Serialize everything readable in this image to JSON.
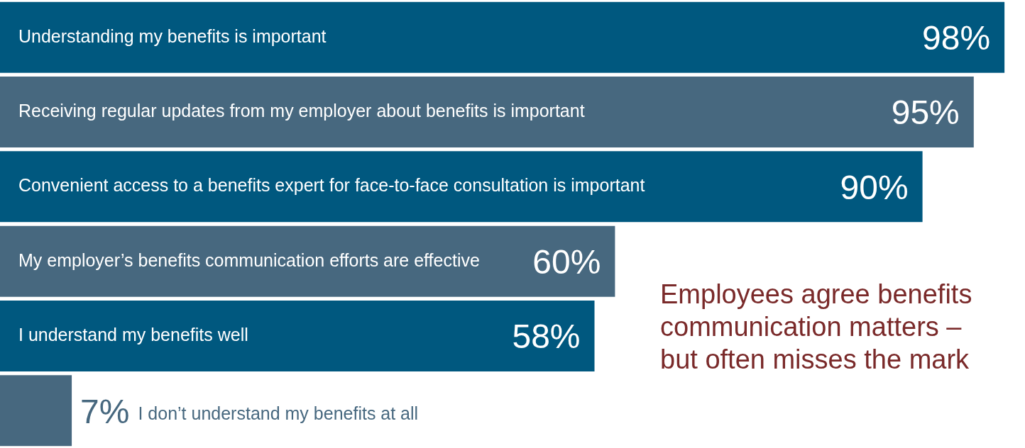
{
  "chart_data": {
    "type": "bar",
    "orientation": "horizontal",
    "title": "Employees agree benefits communication matters – but often misses the mark",
    "categories": [
      "Understanding my benefits is important",
      "Receiving regular updates from my employer about benefits is important",
      "Convenient access to a benefits expert for face-to-face consultation is important",
      "My employer’s benefits communication efforts are effective",
      "I understand my benefits well",
      "I don’t understand my benefits at all"
    ],
    "values": [
      98,
      95,
      90,
      60,
      58,
      7
    ],
    "colors": [
      "#00587f",
      "#47687f",
      "#00587f",
      "#47687f",
      "#00587f",
      "#47687f"
    ],
    "value_labels": [
      "98%",
      "95%",
      "90%",
      "60%",
      "58%",
      "7%"
    ]
  }
}
